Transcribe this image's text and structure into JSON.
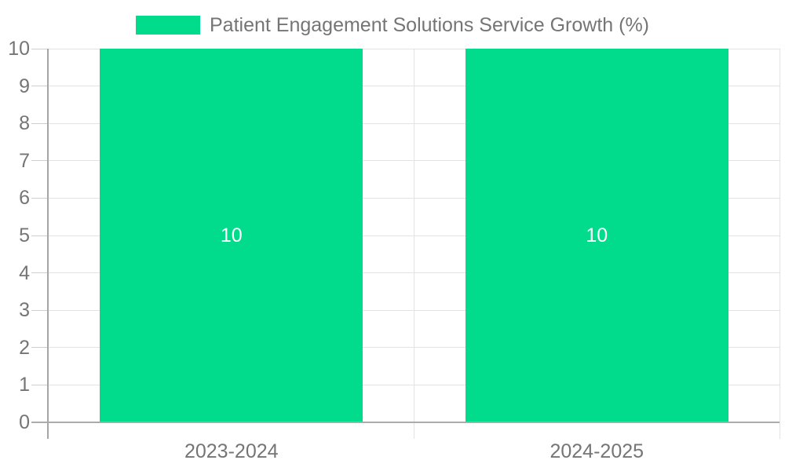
{
  "legend": {
    "label": "Patient Engagement Solutions Service Growth (%)"
  },
  "chart_data": {
    "type": "bar",
    "title": "Patient Engagement Solutions Service Growth (%)",
    "categories": [
      "2023-2024",
      "2024-2025"
    ],
    "series": [
      {
        "name": "Patient Engagement Solutions Service Growth (%)",
        "values": [
          10,
          10
        ]
      }
    ],
    "data_labels": [
      "10",
      "10"
    ],
    "xlabel": "",
    "ylabel": "",
    "ylim": [
      0,
      10
    ],
    "yticks": [
      0,
      1,
      2,
      3,
      4,
      5,
      6,
      7,
      8,
      9,
      10
    ],
    "grid": true,
    "legend_position": "top",
    "colors": {
      "bar": "#00DC8C",
      "grid": "#e3e3e3",
      "axis_y": "#a6a6a6",
      "axis_x": "#ababab",
      "tick": "#cfcfcf",
      "text": "#757575",
      "bar_label": "#ffffff",
      "background": "#ffffff"
    }
  }
}
